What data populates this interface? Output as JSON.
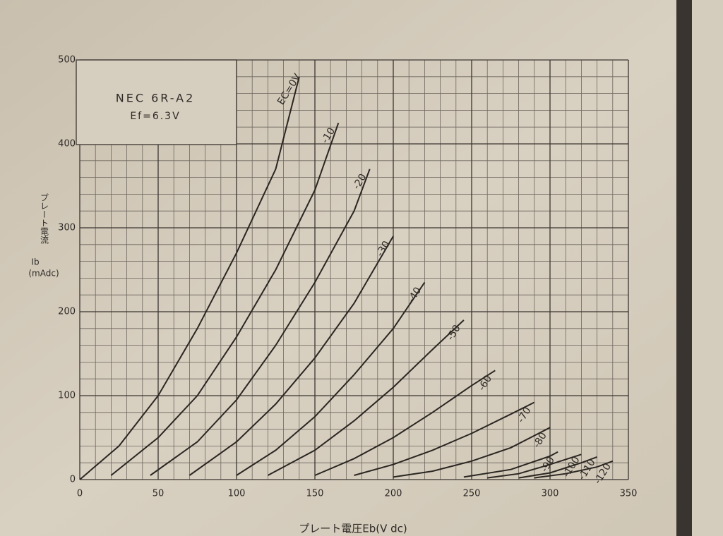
{
  "chart_data": {
    "type": "line",
    "title": "NEC 6R-A2",
    "subtitle": "Ef=6.3V",
    "x_label": "プレート電圧Eb(V dc)",
    "y_label": [
      "プレート電流",
      "Ib",
      "(mAdc)"
    ],
    "xlim": [
      0,
      350
    ],
    "ylim": [
      0,
      500
    ],
    "xticks": [
      0,
      50,
      100,
      150,
      200,
      250,
      300,
      350
    ],
    "yticks": [
      0,
      100,
      200,
      300,
      400,
      500
    ],
    "minor_xticks": [
      10,
      20,
      30,
      40,
      60,
      70,
      80,
      90,
      110,
      120,
      130,
      140,
      160,
      170,
      180,
      190,
      210,
      220,
      230,
      240,
      260,
      270,
      280,
      290,
      310,
      320,
      330,
      340
    ],
    "minor_yticks": [
      20,
      40,
      60,
      80,
      120,
      140,
      160,
      180,
      220,
      240,
      260,
      280,
      320,
      340,
      360,
      380,
      420,
      440,
      460,
      480
    ],
    "grid": true,
    "line_color": "#2a2622",
    "series": [
      {
        "name": "EC=0V",
        "x": [
          0,
          25,
          50,
          75,
          100,
          125,
          140
        ],
        "values": [
          0,
          40,
          100,
          180,
          270,
          370,
          480
        ]
      },
      {
        "name": "-10",
        "x": [
          20,
          50,
          75,
          100,
          125,
          150,
          165
        ],
        "values": [
          5,
          50,
          100,
          170,
          250,
          345,
          425
        ]
      },
      {
        "name": "-20",
        "x": [
          45,
          75,
          100,
          125,
          150,
          175,
          185
        ],
        "values": [
          5,
          45,
          95,
          160,
          235,
          320,
          370
        ]
      },
      {
        "name": "-30",
        "x": [
          70,
          100,
          125,
          150,
          175,
          200
        ],
        "values": [
          5,
          45,
          90,
          145,
          210,
          290
        ]
      },
      {
        "name": "-40",
        "x": [
          100,
          125,
          150,
          175,
          200,
          220
        ],
        "values": [
          5,
          35,
          75,
          125,
          180,
          235
        ]
      },
      {
        "name": "-50",
        "x": [
          120,
          150,
          175,
          200,
          225,
          245
        ],
        "values": [
          5,
          35,
          70,
          110,
          155,
          190
        ]
      },
      {
        "name": "-60",
        "x": [
          150,
          175,
          200,
          225,
          250,
          265
        ],
        "values": [
          5,
          25,
          50,
          80,
          112,
          130
        ]
      },
      {
        "name": "-70",
        "x": [
          175,
          200,
          225,
          250,
          275,
          290
        ],
        "values": [
          5,
          18,
          35,
          55,
          78,
          92
        ]
      },
      {
        "name": "-80",
        "x": [
          200,
          225,
          250,
          275,
          300
        ],
        "values": [
          3,
          10,
          22,
          38,
          62
        ]
      },
      {
        "name": "-90",
        "x": [
          245,
          275,
          300,
          305
        ],
        "values": [
          3,
          12,
          28,
          33
        ]
      },
      {
        "name": "-100",
        "x": [
          260,
          280,
          300,
          320
        ],
        "values": [
          2,
          7,
          18,
          30
        ]
      },
      {
        "name": "-110",
        "x": [
          280,
          300,
          320,
          330
        ],
        "values": [
          2,
          8,
          20,
          27
        ]
      },
      {
        "name": "-120",
        "x": [
          290,
          310,
          330,
          340
        ],
        "values": [
          2,
          7,
          15,
          22
        ]
      }
    ]
  }
}
